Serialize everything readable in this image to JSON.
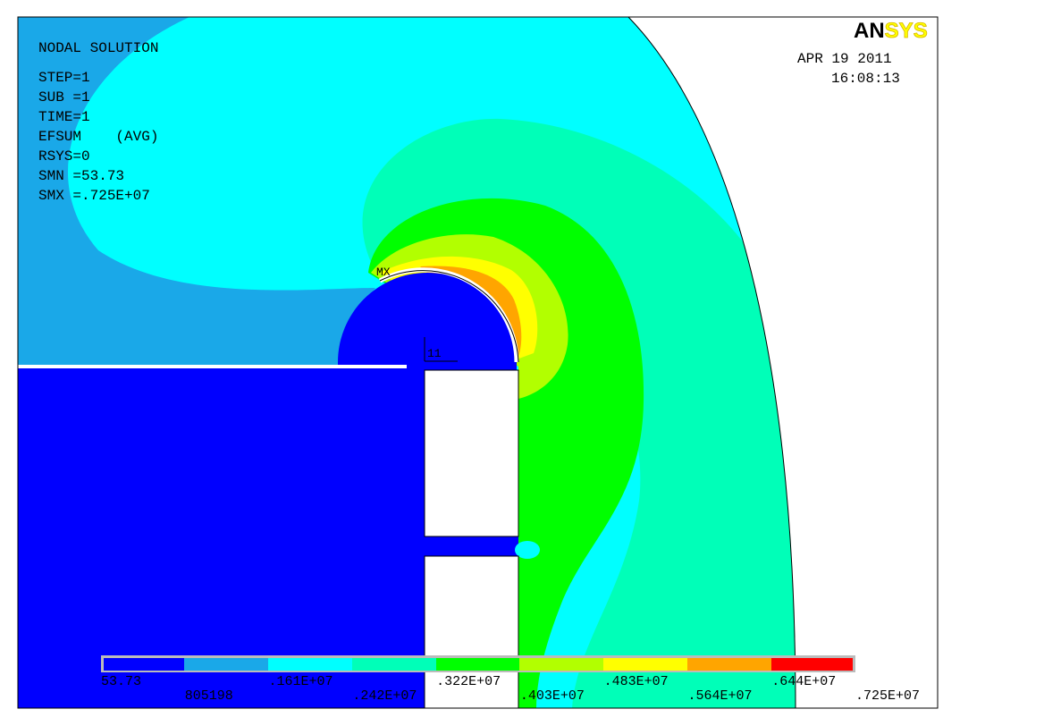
{
  "info": {
    "title": "NODAL SOLUTION",
    "lines": [
      "STEP=1",
      "SUB =1",
      "TIME=1",
      "EFSUM    (AVG)",
      "RSYS=0",
      "SMN =53.73",
      "SMX =.725E+07"
    ]
  },
  "logo": {
    "first": "AN",
    "second": "SYS"
  },
  "date": "APR 19 2011",
  "time": "16:08:13",
  "markers": {
    "max": "MX",
    "node": "11"
  },
  "legend": {
    "labels": [
      "53.73",
      "805198",
      ".161E+07",
      ".242E+07",
      ".322E+07",
      ".403E+07",
      ".483E+07",
      ".564E+07",
      ".644E+07",
      ".725E+07"
    ]
  }
}
